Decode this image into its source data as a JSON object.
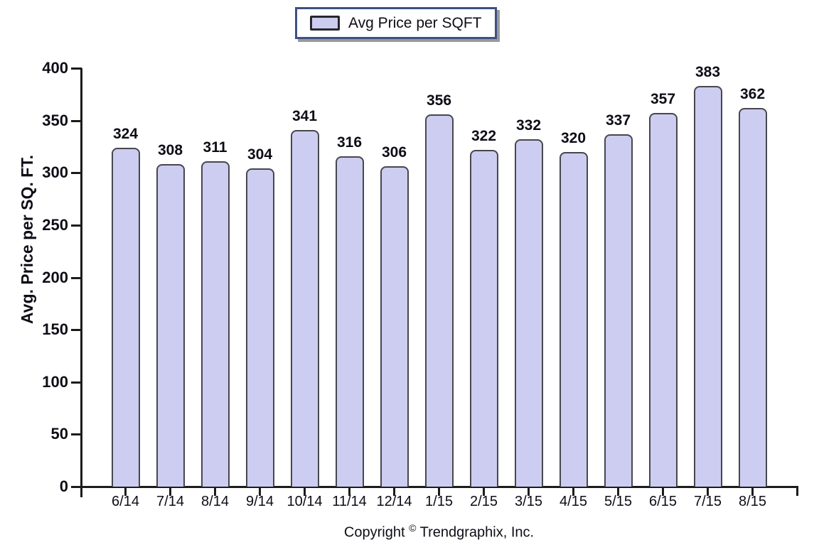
{
  "legend": {
    "label": "Avg Price per SQFT"
  },
  "footer": {
    "copyright_prefix": "Copyright",
    "copyright_symbol": "©",
    "copyright_suffix": "Trendgraphix, Inc."
  },
  "chart_data": {
    "type": "bar",
    "title": "Avg Price per SQFT",
    "categories": [
      "6/14",
      "7/14",
      "8/14",
      "9/14",
      "10/14",
      "11/14",
      "12/14",
      "1/15",
      "2/15",
      "3/15",
      "4/15",
      "5/15",
      "6/15",
      "7/15",
      "8/15"
    ],
    "values": [
      324,
      308,
      311,
      304,
      341,
      316,
      306,
      356,
      322,
      332,
      320,
      337,
      357,
      383,
      362
    ],
    "xlabel": "",
    "ylabel": "Avg. Price per SQ. FT.",
    "ylim": [
      0,
      400
    ],
    "ytick_interval": 50,
    "yticks": [
      0,
      50,
      100,
      150,
      200,
      250,
      300,
      350,
      400
    ],
    "grid": false,
    "data_labels": true,
    "legend_position": "top-center",
    "colors": {
      "bar_fill": "#cdcdf2",
      "bar_border": "#47474d",
      "axis": "#1c1c1c",
      "text": "#0d0d16",
      "legend_border": "#3d5184",
      "legend_shadow": "#9a9a9a"
    }
  }
}
